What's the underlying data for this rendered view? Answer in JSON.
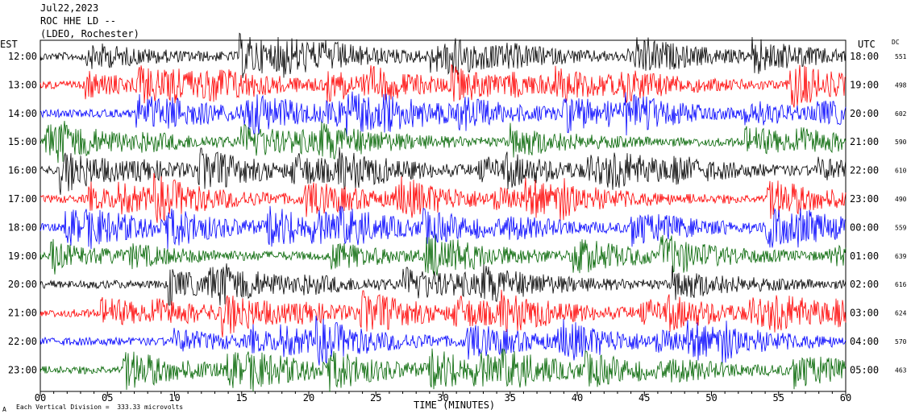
{
  "header": {
    "date": "Jul22,2023",
    "station": "ROC HHE LD --",
    "network": "(LDEO, Rochester)"
  },
  "left_zone_label": "EST",
  "right_zone_label": "UTC",
  "dc_label": "DC",
  "x_axis_label": "TIME (MINUTES)",
  "footer_note": "Each Vertical Division =  333.33 microvolts",
  "corner_mark": "A",
  "colors": {
    "black": "#000000",
    "red": "#ff0000",
    "blue": "#0000ff",
    "green": "#006400"
  },
  "chart_data": {
    "type": "line",
    "xlabel": "TIME (MINUTES)",
    "xlim": [
      0,
      60
    ],
    "x_ticks": [
      "00",
      "05",
      "10",
      "15",
      "20",
      "25",
      "30",
      "35",
      "40",
      "45",
      "50",
      "55",
      "60"
    ],
    "series": [
      {
        "est": "12:00",
        "utc": "18:00",
        "dc": "551",
        "color": "#000000"
      },
      {
        "est": "13:00",
        "utc": "19:00",
        "dc": "498",
        "color": "#ff0000"
      },
      {
        "est": "14:00",
        "utc": "20:00",
        "dc": "602",
        "color": "#0000ff"
      },
      {
        "est": "15:00",
        "utc": "21:00",
        "dc": "590",
        "color": "#006400"
      },
      {
        "est": "16:00",
        "utc": "22:00",
        "dc": "610",
        "color": "#000000"
      },
      {
        "est": "17:00",
        "utc": "23:00",
        "dc": "490",
        "color": "#ff0000"
      },
      {
        "est": "18:00",
        "utc": "00:00",
        "dc": "559",
        "color": "#0000ff"
      },
      {
        "est": "19:00",
        "utc": "01:00",
        "dc": "639",
        "color": "#006400"
      },
      {
        "est": "20:00",
        "utc": "02:00",
        "dc": "616",
        "color": "#000000"
      },
      {
        "est": "21:00",
        "utc": "03:00",
        "dc": "624",
        "color": "#ff0000"
      },
      {
        "est": "22:00",
        "utc": "04:00",
        "dc": "570",
        "color": "#0000ff"
      },
      {
        "est": "23:00",
        "utc": "05:00",
        "dc": "463",
        "color": "#006400"
      }
    ]
  }
}
